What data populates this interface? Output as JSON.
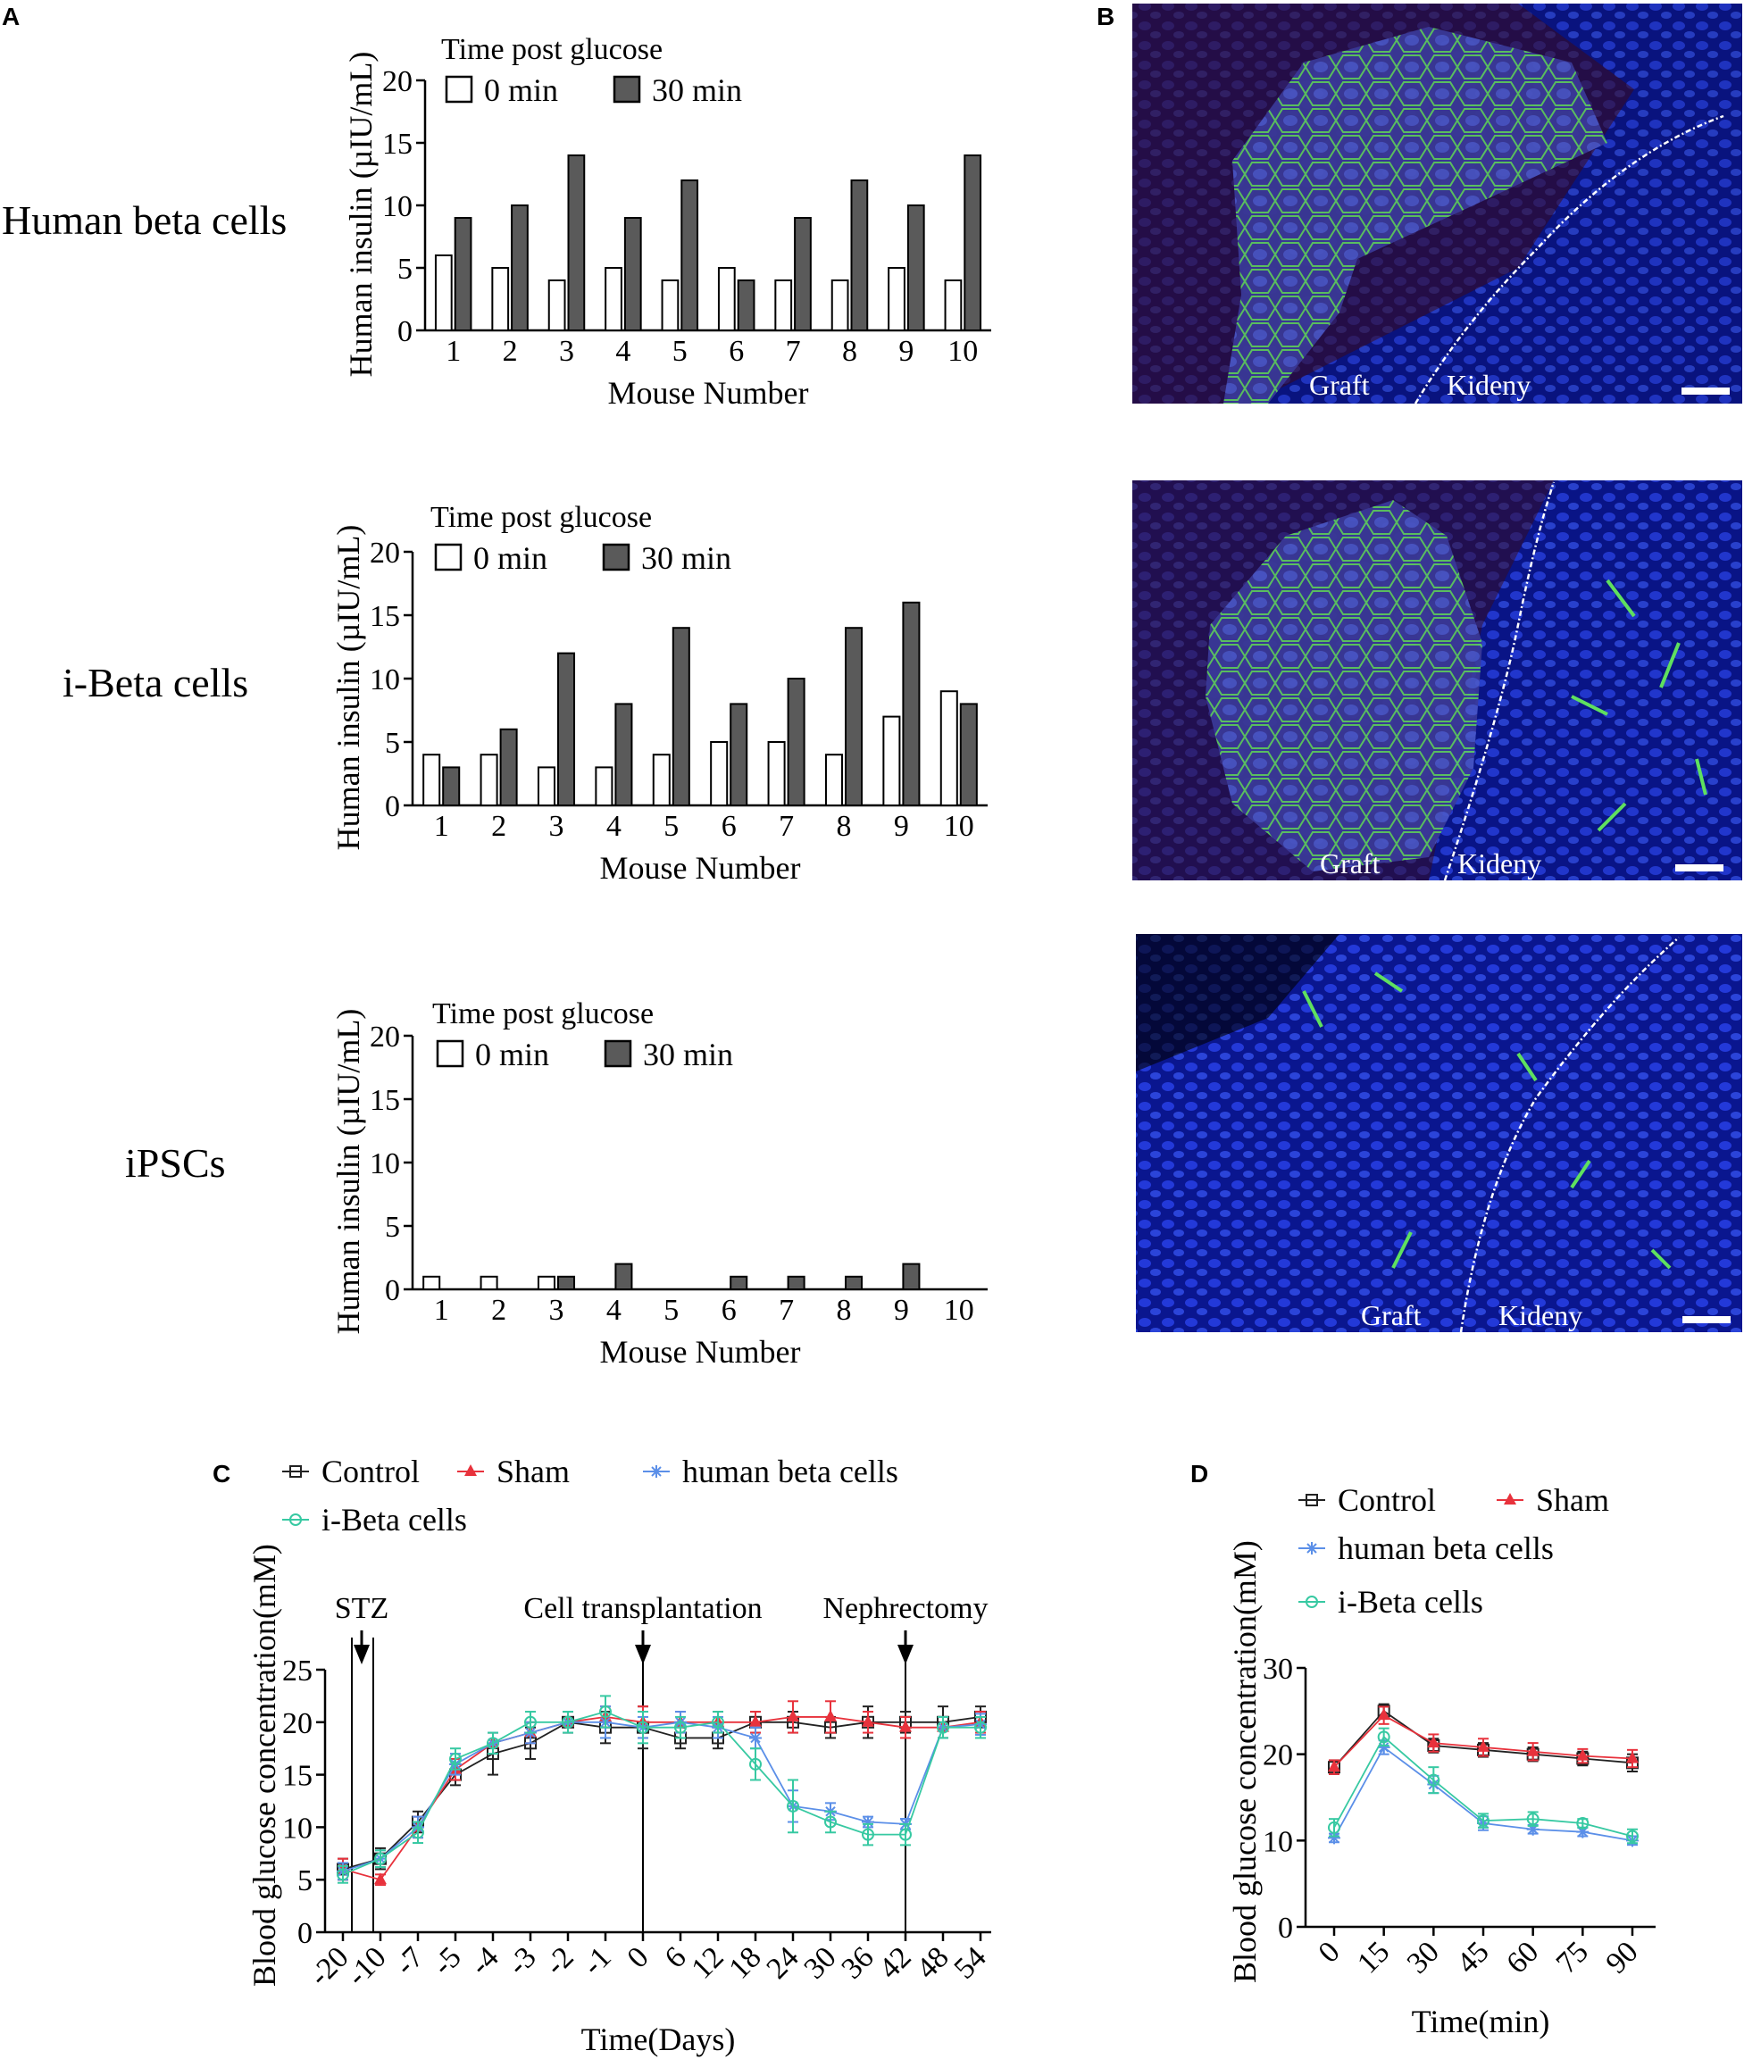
{
  "panel_labels": {
    "A": "A",
    "B": "B",
    "C": "C",
    "D": "D"
  },
  "row_labels": [
    "Human beta cells",
    "i-Beta cells",
    "iPSCs"
  ],
  "micrographs": [
    {
      "graft_label": "Graft",
      "kidney_label": "Kideny"
    },
    {
      "graft_label": "Graft",
      "kidney_label": "Kideny"
    },
    {
      "graft_label": "Graft",
      "kidney_label": "Kideny"
    }
  ],
  "colors": {
    "bar_0min": "#ffffff",
    "bar_30min": "#5a5a5a",
    "control": "#222222",
    "sham": "#e8323c",
    "human_beta": "#5b8fe8",
    "ibeta": "#37c9a2",
    "fluor_blue": "#1a2fd8",
    "fluor_green": "#3fbf3f",
    "fluor_red": "#6a1020"
  },
  "chart_data": [
    {
      "id": "A1",
      "type": "bar",
      "title": "",
      "legend_title": "Time post glucose",
      "xlabel": "Mouse Number",
      "ylabel": "Human insulin (µIU/mL)",
      "ylim": [
        0,
        20
      ],
      "yticks": [
        0,
        5,
        10,
        15,
        20
      ],
      "categories": [
        "1",
        "2",
        "3",
        "4",
        "5",
        "6",
        "7",
        "8",
        "9",
        "10"
      ],
      "series": [
        {
          "name": "0 min",
          "values": [
            6,
            5,
            4,
            5,
            4,
            5,
            4,
            4,
            5,
            4
          ]
        },
        {
          "name": "30 min",
          "values": [
            9,
            10,
            14,
            9,
            12,
            4,
            9,
            12,
            10,
            14
          ]
        }
      ]
    },
    {
      "id": "A2",
      "type": "bar",
      "title": "",
      "legend_title": "Time post glucose",
      "xlabel": "Mouse Number",
      "ylabel": "Human insulin (µIU/mL)",
      "ylim": [
        0,
        20
      ],
      "yticks": [
        0,
        5,
        10,
        15,
        20
      ],
      "categories": [
        "1",
        "2",
        "3",
        "4",
        "5",
        "6",
        "7",
        "8",
        "9",
        "10"
      ],
      "series": [
        {
          "name": "0 min",
          "values": [
            4,
            4,
            3,
            3,
            4,
            5,
            5,
            4,
            7,
            9
          ]
        },
        {
          "name": "30 min",
          "values": [
            3,
            6,
            12,
            8,
            14,
            8,
            10,
            14,
            16,
            8
          ]
        }
      ]
    },
    {
      "id": "A3",
      "type": "bar",
      "title": "",
      "legend_title": "Time post glucose",
      "xlabel": "Mouse Number",
      "ylabel": "Human insulin (µIU/mL)",
      "ylim": [
        0,
        20
      ],
      "yticks": [
        0,
        5,
        10,
        15,
        20
      ],
      "categories": [
        "1",
        "2",
        "3",
        "4",
        "5",
        "6",
        "7",
        "8",
        "9",
        "10"
      ],
      "series": [
        {
          "name": "0 min",
          "values": [
            1,
            1,
            1,
            0,
            0,
            0,
            0,
            0,
            0,
            0
          ]
        },
        {
          "name": "30 min",
          "values": [
            0,
            0,
            1,
            2,
            0,
            1,
            1,
            1,
            2,
            0
          ]
        }
      ]
    },
    {
      "id": "C",
      "type": "line",
      "title": "",
      "xlabel": "Time(Days)",
      "ylabel": "Blood glucose concentration(mM)",
      "ylim": [
        0,
        25
      ],
      "yticks": [
        0,
        5,
        10,
        15,
        20,
        25
      ],
      "categories": [
        "-20",
        "-10",
        "-7",
        "-5",
        "-4",
        "-3",
        "-2",
        "-1",
        "0",
        "6",
        "12",
        "18",
        "24",
        "30",
        "36",
        "42",
        "48",
        "54"
      ],
      "annotations": [
        {
          "label": "STZ",
          "at": 0.5
        },
        {
          "label": "Cell transplantation",
          "at": 8
        },
        {
          "label": "Nephrectomy",
          "at": 15
        }
      ],
      "series": [
        {
          "name": "Control",
          "values": [
            6,
            7,
            10.5,
            15,
            17,
            18,
            20,
            19.5,
            19.5,
            18.5,
            18.5,
            20,
            20,
            19.5,
            20,
            20,
            20,
            20.5
          ],
          "errors": [
            1,
            1,
            1,
            1,
            2,
            1.5,
            1,
            1.5,
            2,
            1,
            1,
            1,
            1,
            1,
            1.5,
            1,
            1.5,
            1
          ]
        },
        {
          "name": "Sham",
          "values": [
            6,
            5,
            10,
            15.5,
            18,
            19,
            20,
            20.5,
            20,
            20,
            20,
            20,
            20.5,
            20.5,
            20,
            19.5,
            19.5,
            20
          ],
          "errors": [
            1,
            0.5,
            1,
            1,
            1,
            1,
            1,
            1,
            1.5,
            1,
            1,
            1,
            1.5,
            1.5,
            1,
            1,
            1,
            1
          ]
        },
        {
          "name": "human beta cells",
          "values": [
            5.8,
            7,
            10,
            16,
            18,
            19,
            20,
            20,
            19.5,
            20,
            19.5,
            18.5,
            12,
            11.5,
            10.5,
            10.3,
            19.5,
            19.8
          ],
          "errors": [
            0.8,
            0.8,
            1,
            1,
            1,
            1,
            1,
            1.5,
            1,
            1,
            1,
            1,
            1.5,
            0.8,
            0.5,
            0.5,
            1,
            1
          ]
        },
        {
          "name": "i-Beta cells",
          "values": [
            5.5,
            7,
            9.5,
            16.5,
            18,
            20,
            20,
            21,
            19.5,
            19.5,
            20,
            16,
            12,
            10.5,
            9.3,
            9.3,
            19.5,
            19.5
          ],
          "errors": [
            0.8,
            0.8,
            1,
            1,
            1,
            1,
            1,
            1.5,
            1.5,
            1,
            1,
            1.5,
            2.5,
            1,
            1,
            1,
            1,
            1
          ]
        }
      ]
    },
    {
      "id": "D",
      "type": "line",
      "title": "",
      "xlabel": "Time(min)",
      "ylabel": "Blood glucose concentration(mM)",
      "ylim": [
        0,
        30
      ],
      "yticks": [
        0,
        10,
        20,
        30
      ],
      "categories": [
        "0",
        "15",
        "30",
        "45",
        "60",
        "75",
        "90"
      ],
      "series": [
        {
          "name": "Control",
          "values": [
            18.5,
            25,
            21,
            20.5,
            20,
            19.5,
            19
          ],
          "errors": [
            0.8,
            0.8,
            0.8,
            0.8,
            0.8,
            0.8,
            1
          ]
        },
        {
          "name": "Sham",
          "values": [
            18.5,
            24.5,
            21.3,
            20.8,
            20.3,
            19.8,
            19.5
          ],
          "errors": [
            0.8,
            1,
            1,
            1,
            1,
            0.8,
            1
          ]
        },
        {
          "name": "human beta cells",
          "values": [
            10.3,
            20.8,
            16.5,
            12,
            11.3,
            11,
            10
          ],
          "errors": [
            0.5,
            0.8,
            1,
            0.8,
            0.5,
            0.5,
            0.5
          ]
        },
        {
          "name": "i-Beta cells",
          "values": [
            11.5,
            22,
            17,
            12.3,
            12.5,
            12,
            10.5
          ],
          "errors": [
            1,
            1,
            1.5,
            0.8,
            0.8,
            0.5,
            0.8
          ]
        }
      ]
    }
  ]
}
